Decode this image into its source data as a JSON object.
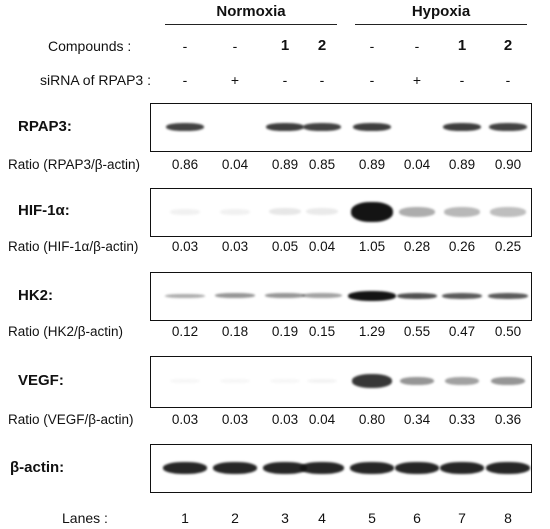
{
  "conditions": [
    {
      "title": "Normoxia"
    },
    {
      "title": "Hypoxia"
    }
  ],
  "treatment_rows": [
    {
      "label": "Compounds :",
      "values": [
        "-",
        "-",
        "1",
        "2",
        "-",
        "-",
        "1",
        "2"
      ]
    },
    {
      "label": "siRNA of RPAP3 :",
      "values": [
        "-",
        "+",
        "-",
        "-",
        "-",
        "+",
        "-",
        "-"
      ]
    }
  ],
  "blots": [
    {
      "label": "RPAP3:",
      "ratio_label": "Ratio (RPAP3/β-actin)",
      "ratios": [
        "0.86",
        "0.04",
        "0.89",
        "0.85",
        "0.89",
        "0.04",
        "0.89",
        "0.90"
      ]
    },
    {
      "label": "HIF-1α:",
      "ratio_label": "Ratio (HIF-1α/β-actin)",
      "ratios": [
        "0.03",
        "0.03",
        "0.05",
        "0.04",
        "1.05",
        "0.28",
        "0.26",
        "0.25"
      ]
    },
    {
      "label": "HK2:",
      "ratio_label": "Ratio (HK2/β-actin)",
      "ratios": [
        "0.12",
        "0.18",
        "0.19",
        "0.15",
        "1.29",
        "0.55",
        "0.47",
        "0.50"
      ]
    },
    {
      "label": "VEGF:",
      "ratio_label": "Ratio (VEGF/β-actin)",
      "ratios": [
        "0.03",
        "0.03",
        "0.03",
        "0.04",
        "0.80",
        "0.34",
        "0.33",
        "0.36"
      ]
    },
    {
      "label": "β-actin:",
      "ratio_label": "",
      "ratios": []
    }
  ],
  "lanes": {
    "label": "Lanes :",
    "numbers": [
      "1",
      "2",
      "3",
      "4",
      "5",
      "6",
      "7",
      "8"
    ]
  }
}
